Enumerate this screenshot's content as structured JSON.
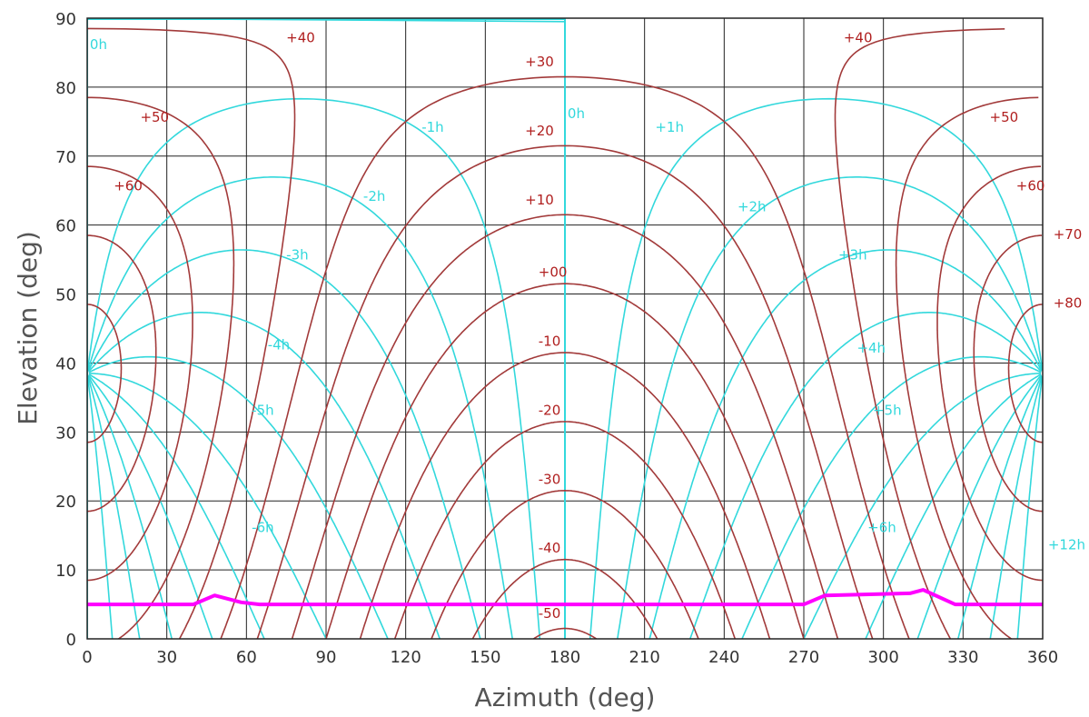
{
  "chart_data": {
    "type": "line",
    "title": "",
    "xlabel": "Azimuth (deg)",
    "ylabel": "Elevation (deg)",
    "xlim": [
      0,
      360
    ],
    "ylim": [
      0,
      90
    ],
    "x_ticks": [
      "0",
      "30",
      "60",
      "90",
      "120",
      "150",
      "180",
      "210",
      "240",
      "270",
      "300",
      "330",
      "360"
    ],
    "y_ticks": [
      "0",
      "10",
      "20",
      "30",
      "40",
      "50",
      "60",
      "70",
      "80",
      "90"
    ],
    "grid": true,
    "observer_latitude_deg": 38.5,
    "declination_series_color": "#a23a3a",
    "hour_angle_series_color": "#32d8dc",
    "horizon_color": "#ff00ff",
    "declination_labels": [
      {
        "text": "+40",
        "az": 75,
        "el": 86.5
      },
      {
        "text": "+40",
        "az": 285,
        "el": 86.5
      },
      {
        "text": "+30",
        "az": 165,
        "el": 83
      },
      {
        "text": "+50",
        "az": 20,
        "el": 75
      },
      {
        "text": "+50",
        "az": 340,
        "el": 75
      },
      {
        "text": "+20",
        "az": 165,
        "el": 73
      },
      {
        "text": "+60",
        "az": 10,
        "el": 65
      },
      {
        "text": "+60",
        "az": 350,
        "el": 65
      },
      {
        "text": "+10",
        "az": 165,
        "el": 63
      },
      {
        "text": "+70",
        "az": 364,
        "el": 58
      },
      {
        "text": "+00",
        "az": 170,
        "el": 52.5
      },
      {
        "text": "+80",
        "az": 364,
        "el": 48
      },
      {
        "text": "-10",
        "az": 170,
        "el": 42.5
      },
      {
        "text": "-20",
        "az": 170,
        "el": 32.5
      },
      {
        "text": "-30",
        "az": 170,
        "el": 22.5
      },
      {
        "text": "-40",
        "az": 170,
        "el": 12.5
      },
      {
        "text": "-50",
        "az": 170,
        "el": 3
      }
    ],
    "hour_angle_labels": [
      {
        "text": "0h",
        "az": 1,
        "el": 85.5
      },
      {
        "text": "0h",
        "az": 181,
        "el": 75.5
      },
      {
        "text": "-1h",
        "az": 126,
        "el": 73.5
      },
      {
        "text": "+1h",
        "az": 214,
        "el": 73.5
      },
      {
        "text": "-2h",
        "az": 104,
        "el": 63.5
      },
      {
        "text": "+2h",
        "az": 245,
        "el": 62
      },
      {
        "text": "-3h",
        "az": 75,
        "el": 55
      },
      {
        "text": "+3h",
        "az": 283,
        "el": 55
      },
      {
        "text": "-4h",
        "az": 68,
        "el": 42
      },
      {
        "text": "+4h",
        "az": 290,
        "el": 41.5
      },
      {
        "text": "-5h",
        "az": 62,
        "el": 32.5
      },
      {
        "text": "+5h",
        "az": 296,
        "el": 32.5
      },
      {
        "text": "-6h",
        "az": 62,
        "el": 15.5
      },
      {
        "text": "+6h",
        "az": 294,
        "el": 15.5
      },
      {
        "text": "+12h",
        "az": 362,
        "el": 13
      }
    ],
    "declination_values_deg": [
      -50,
      -40,
      -30,
      -20,
      -10,
      0,
      10,
      20,
      30,
      40,
      50,
      60,
      70,
      80
    ],
    "hour_angle_values_h": [
      -11,
      -10,
      -9,
      -8,
      -7,
      -6,
      -5,
      -4,
      -3,
      -2,
      -1,
      0,
      1,
      2,
      3,
      4,
      5,
      6,
      7,
      8,
      9,
      10,
      11
    ],
    "horizon_profile": [
      {
        "az": 0,
        "el": 5
      },
      {
        "az": 40,
        "el": 5
      },
      {
        "az": 48,
        "el": 6.3
      },
      {
        "az": 58,
        "el": 5.3
      },
      {
        "az": 65,
        "el": 5
      },
      {
        "az": 270,
        "el": 5
      },
      {
        "az": 278,
        "el": 6.3
      },
      {
        "az": 310,
        "el": 6.6
      },
      {
        "az": 315,
        "el": 7.1
      },
      {
        "az": 327,
        "el": 5
      },
      {
        "az": 360,
        "el": 5
      }
    ]
  }
}
